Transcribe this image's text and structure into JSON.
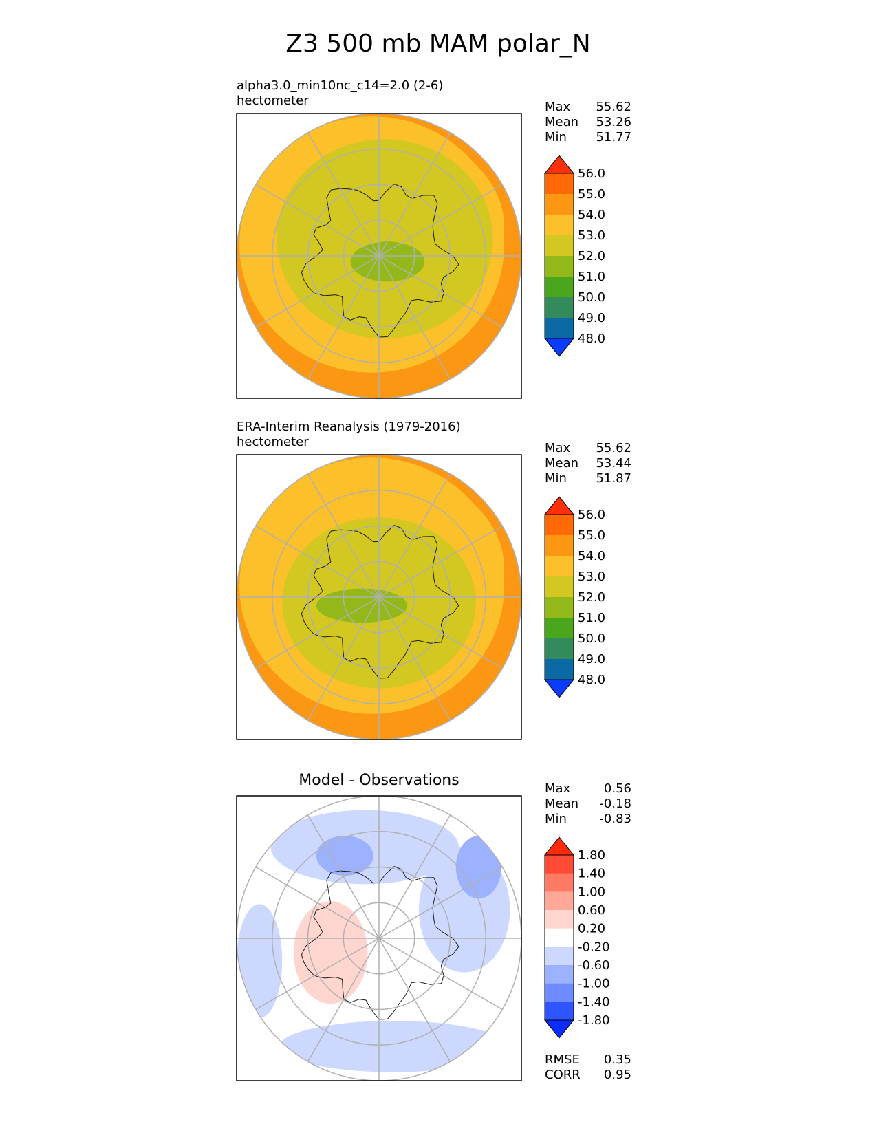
{
  "figure": {
    "title": "Z3 500 mb MAM polar_N"
  },
  "colors": {
    "map_outline": "#000000",
    "grid": "#b0b0b0",
    "coastline": "#1a1a1a"
  },
  "chart_data": [
    {
      "type": "heatmap",
      "projection": "north-polar-stereographic",
      "title": "alpha3.0_min10nc_c14=2.0 (2-6)",
      "units": "hectometer",
      "stats": {
        "max": "55.62",
        "mean": "53.26",
        "min": "51.77"
      },
      "stat_labels": {
        "max": "Max",
        "mean": "Mean",
        "min": "Min"
      },
      "colorbar": {
        "levels": [
          "48.0",
          "49.0",
          "50.0",
          "51.0",
          "52.0",
          "53.0",
          "54.0",
          "55.0",
          "56.0"
        ],
        "colors": [
          "#0a3cff",
          "#0b6aa3",
          "#338a5a",
          "#4aa61c",
          "#93b81a",
          "#d3c721",
          "#fcc02a",
          "#fb9712",
          "#ff6a06",
          "#ff2f0a"
        ],
        "extend": "both"
      },
      "field": {
        "polar_value": 51.8,
        "rings": [
          {
            "level_index": 4,
            "rx": 0.38,
            "ry": 0.35,
            "dx": 0.02,
            "dy": -0.06
          },
          {
            "level_index": 3,
            "rx": 0.13,
            "ry": 0.07,
            "dx": 0.03,
            "dy": 0.02
          }
        ],
        "outer_band_index": 6,
        "edge_band_index": 7
      }
    },
    {
      "type": "heatmap",
      "projection": "north-polar-stereographic",
      "title": "ERA-Interim Reanalysis (1979-2016)",
      "units": "hectometer",
      "stats": {
        "max": "55.62",
        "mean": "53.44",
        "min": "51.87"
      },
      "stat_labels": {
        "max": "Max",
        "mean": "Mean",
        "min": "Min"
      },
      "colorbar": {
        "levels": [
          "48.0",
          "49.0",
          "50.0",
          "51.0",
          "52.0",
          "53.0",
          "54.0",
          "55.0",
          "56.0"
        ],
        "colors": [
          "#0a3cff",
          "#0b6aa3",
          "#338a5a",
          "#4aa61c",
          "#93b81a",
          "#d3c721",
          "#fcc02a",
          "#fb9712",
          "#ff6a06",
          "#ff2f0a"
        ],
        "extend": "both"
      },
      "field": {
        "polar_value": 51.9,
        "rings": [
          {
            "level_index": 4,
            "rx": 0.34,
            "ry": 0.3,
            "dx": 0.0,
            "dy": 0.02
          },
          {
            "level_index": 3,
            "rx": 0.16,
            "ry": 0.06,
            "dx": -0.06,
            "dy": 0.03
          }
        ],
        "outer_band_index": 6,
        "edge_band_index": 7
      }
    },
    {
      "type": "heatmap",
      "projection": "north-polar-stereographic",
      "title": "Model - Observations",
      "units": "",
      "stats": {
        "max": "0.56",
        "mean": "-0.18",
        "min": "-0.83"
      },
      "stat_labels": {
        "max": "Max",
        "mean": "Mean",
        "min": "Min"
      },
      "colorbar": {
        "levels": [
          "-1.80",
          "-1.40",
          "-1.00",
          "-0.60",
          "-0.20",
          "0.20",
          "0.60",
          "1.00",
          "1.40",
          "1.80"
        ],
        "colors": [
          "#0a2cff",
          "#2e55ff",
          "#6d8cff",
          "#9db2ff",
          "#cdd8ff",
          "#ffffff",
          "#ffd5cf",
          "#ffa898",
          "#ff7a65",
          "#ff4a36",
          "#ff2a0a"
        ],
        "extend": "both"
      },
      "footer_stats": {
        "rmse_label": "RMSE",
        "rmse": "0.35",
        "corr_label": "CORR",
        "corr": "0.95"
      }
    }
  ]
}
